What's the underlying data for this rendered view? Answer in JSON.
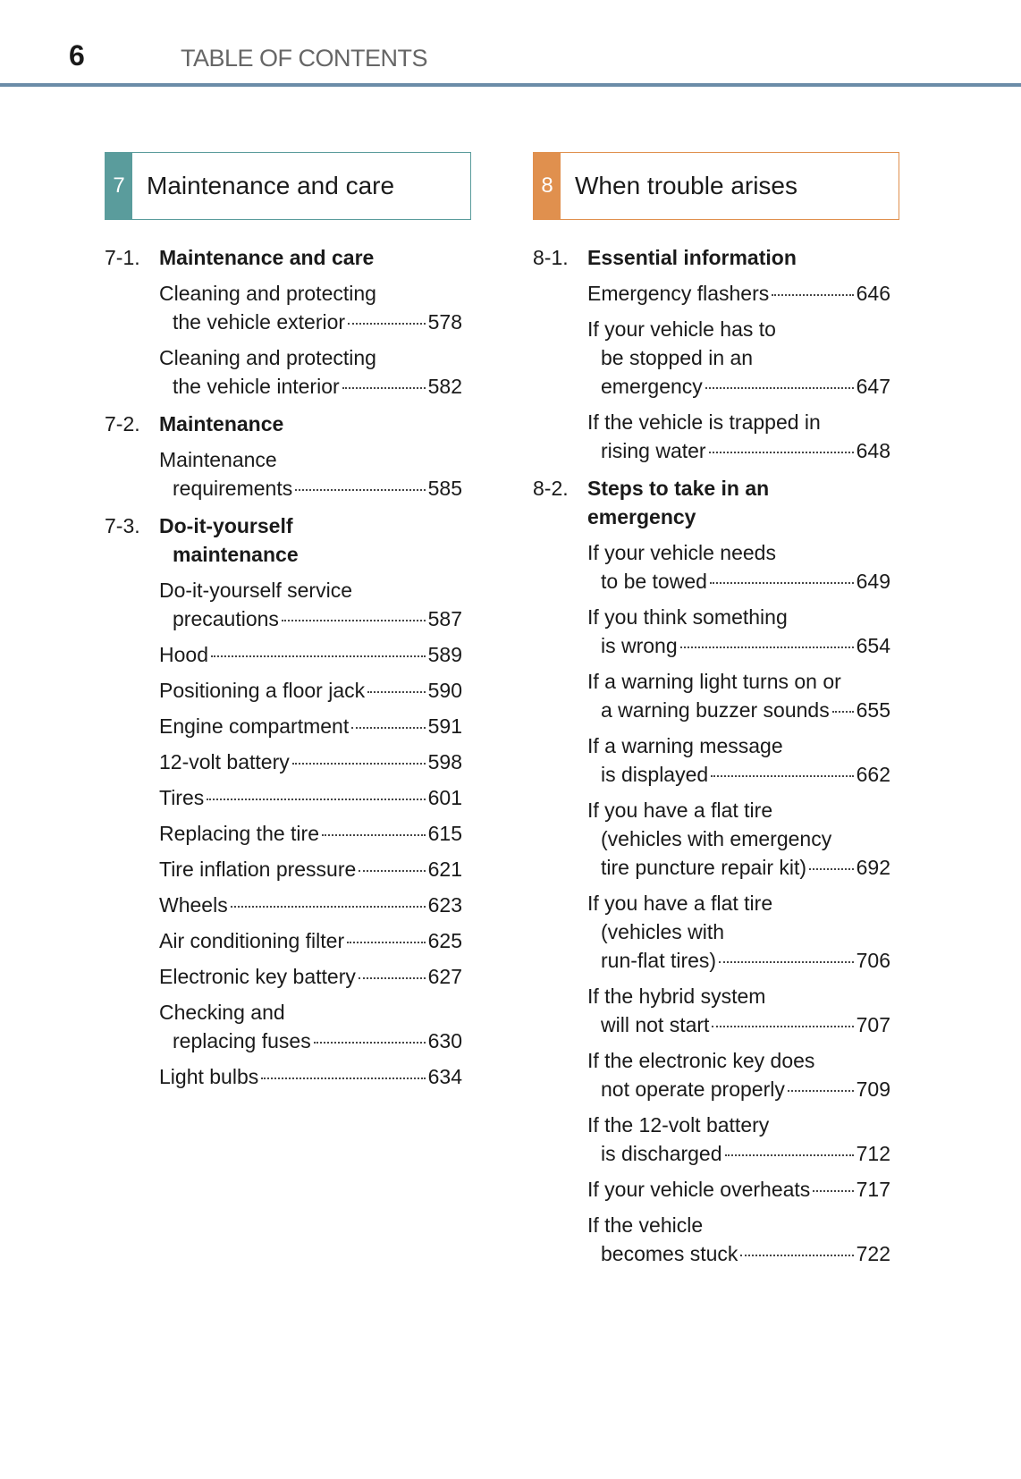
{
  "header": {
    "page_number": "6",
    "title": "TABLE OF CONTENTS"
  },
  "colors": {
    "section7": "#5a9c9c",
    "section8": "#e0904e",
    "rule": "#6b8ca8"
  },
  "sections": [
    {
      "number": "7",
      "title": "Maintenance and care",
      "subsections": [
        {
          "number": "7-1.",
          "title": [
            "Maintenance and care"
          ],
          "entries": [
            {
              "lines": [
                "Cleaning and protecting",
                "the vehicle exterior"
              ],
              "page": "578"
            },
            {
              "lines": [
                "Cleaning and protecting",
                "the vehicle interior"
              ],
              "page": "582"
            }
          ]
        },
        {
          "number": "7-2.",
          "title": [
            "Maintenance"
          ],
          "entries": [
            {
              "lines": [
                "Maintenance",
                "requirements"
              ],
              "page": "585"
            }
          ]
        },
        {
          "number": "7-3.",
          "title": [
            "Do-it-yourself",
            "maintenance"
          ],
          "entries": [
            {
              "lines": [
                "Do-it-yourself service",
                "precautions"
              ],
              "page": "587"
            },
            {
              "lines": [
                "Hood"
              ],
              "page": "589"
            },
            {
              "lines": [
                "Positioning a floor jack"
              ],
              "page": "590"
            },
            {
              "lines": [
                "Engine compartment"
              ],
              "page": "591"
            },
            {
              "lines": [
                "12-volt battery"
              ],
              "page": "598"
            },
            {
              "lines": [
                "Tires"
              ],
              "page": "601"
            },
            {
              "lines": [
                "Replacing the tire"
              ],
              "page": "615"
            },
            {
              "lines": [
                "Tire inflation pressure"
              ],
              "page": "621"
            },
            {
              "lines": [
                "Wheels"
              ],
              "page": "623"
            },
            {
              "lines": [
                "Air conditioning filter"
              ],
              "page": "625"
            },
            {
              "lines": [
                "Electronic key battery"
              ],
              "page": "627"
            },
            {
              "lines": [
                "Checking and",
                "replacing fuses"
              ],
              "page": "630"
            },
            {
              "lines": [
                "Light bulbs"
              ],
              "page": "634"
            }
          ]
        }
      ]
    },
    {
      "number": "8",
      "title": "When trouble arises",
      "subsections": [
        {
          "number": "8-1.",
          "title": [
            "Essential information"
          ],
          "entries": [
            {
              "lines": [
                "Emergency flashers"
              ],
              "page": "646"
            },
            {
              "lines": [
                "If your vehicle has to",
                "be stopped in an",
                "emergency"
              ],
              "page": "647"
            },
            {
              "lines": [
                "If the vehicle is trapped in",
                "rising water"
              ],
              "page": "648"
            }
          ]
        },
        {
          "number": "8-2.",
          "title": [
            "Steps to take in an emergency"
          ],
          "entries": [
            {
              "lines": [
                "If your vehicle needs",
                "to be towed"
              ],
              "page": "649"
            },
            {
              "lines": [
                "If you think something",
                "is wrong"
              ],
              "page": "654"
            },
            {
              "lines": [
                "If a warning light turns on or",
                "a warning buzzer sounds"
              ],
              "page": "655"
            },
            {
              "lines": [
                "If a warning message",
                "is displayed"
              ],
              "page": "662"
            },
            {
              "lines": [
                "If you have a flat tire",
                "(vehicles with emergency",
                "tire puncture repair kit)"
              ],
              "page": "692"
            },
            {
              "lines": [
                "If you have a flat tire",
                "(vehicles with",
                "run-flat tires)"
              ],
              "page": "706"
            },
            {
              "lines": [
                "If the hybrid system",
                "will not start"
              ],
              "page": "707"
            },
            {
              "lines": [
                "If the electronic key does",
                "not operate properly"
              ],
              "page": "709"
            },
            {
              "lines": [
                "If the 12-volt battery",
                "is discharged"
              ],
              "page": "712"
            },
            {
              "lines": [
                "If your vehicle overheats"
              ],
              "page": "717"
            },
            {
              "lines": [
                "If the vehicle",
                "becomes stuck"
              ],
              "page": "722"
            }
          ]
        }
      ]
    }
  ]
}
